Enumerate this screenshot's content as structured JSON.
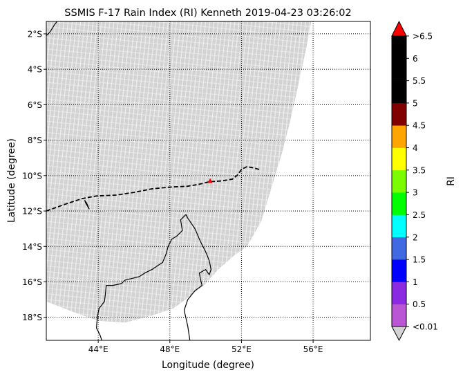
{
  "chart_data": {
    "type": "map",
    "title": "SSMIS F-17 Rain Index (RI) Kenneth 2019-04-23 03:26:02",
    "xlabel": "Longitude (degree)",
    "ylabel": "Latitude (degree)",
    "xlim": [
      41.1,
      59.2
    ],
    "ylim": [
      -19.3,
      -1.3
    ],
    "x_ticks": [
      {
        "value": 44,
        "label": "44°E"
      },
      {
        "value": 48,
        "label": "48°E"
      },
      {
        "value": 52,
        "label": "52°E"
      },
      {
        "value": 56,
        "label": "56°E"
      }
    ],
    "y_ticks": [
      {
        "value": -2,
        "label": "2°S"
      },
      {
        "value": -4,
        "label": "4°S"
      },
      {
        "value": -6,
        "label": "6°S"
      },
      {
        "value": -8,
        "label": "8°S"
      },
      {
        "value": -10,
        "label": "10°S"
      },
      {
        "value": -12,
        "label": "12°S"
      },
      {
        "value": -14,
        "label": "14°S"
      },
      {
        "value": -16,
        "label": "16°S"
      },
      {
        "value": -18,
        "label": "18°S"
      }
    ],
    "swath_color": "#d3d3d3",
    "swath_outline": [
      [
        41.1,
        -1.3
      ],
      [
        55.9,
        -1.3
      ],
      [
        55.7,
        -2.4
      ],
      [
        55.3,
        -4.3
      ],
      [
        54.8,
        -6.6
      ],
      [
        54.3,
        -8.6
      ],
      [
        53.7,
        -10.6
      ],
      [
        53.1,
        -12.6
      ],
      [
        52.3,
        -14.0
      ],
      [
        51.6,
        -14.5
      ],
      [
        50.7,
        -15.3
      ],
      [
        49.9,
        -16.2
      ],
      [
        49.0,
        -16.9
      ],
      [
        48.2,
        -17.5
      ],
      [
        47.0,
        -17.9
      ],
      [
        45.5,
        -18.3
      ],
      [
        44.0,
        -18.2
      ],
      [
        42.6,
        -17.7
      ],
      [
        41.1,
        -17.1
      ]
    ],
    "track": {
      "color": "#000000",
      "points": [
        [
          41.1,
          -12.0
        ],
        [
          42.2,
          -11.6
        ],
        [
          43.1,
          -11.3
        ],
        [
          43.9,
          -11.15
        ],
        [
          45.0,
          -11.1
        ],
        [
          46.0,
          -10.95
        ],
        [
          47.0,
          -10.75
        ],
        [
          48.0,
          -10.65
        ],
        [
          49.0,
          -10.6
        ],
        [
          49.6,
          -10.5
        ],
        [
          50.2,
          -10.35
        ],
        [
          50.9,
          -10.3
        ],
        [
          51.5,
          -10.2
        ],
        [
          51.8,
          -9.95
        ],
        [
          52.0,
          -9.65
        ],
        [
          52.3,
          -9.5
        ],
        [
          52.6,
          -9.55
        ],
        [
          53.0,
          -9.65
        ]
      ]
    },
    "storm_center": {
      "lon": 50.25,
      "lat": -10.3,
      "color": "#ff0000"
    },
    "coastlines": [
      [
        [
          41.1,
          -2.1
        ],
        [
          41.3,
          -1.9
        ],
        [
          41.55,
          -1.5
        ],
        [
          41.7,
          -1.3
        ]
      ],
      [
        [
          49.12,
          -19.3
        ],
        [
          49.0,
          -18.5
        ],
        [
          48.8,
          -17.6
        ],
        [
          49.0,
          -17.0
        ],
        [
          49.4,
          -16.5
        ],
        [
          49.8,
          -16.2
        ],
        [
          49.7,
          -15.8
        ],
        [
          49.65,
          -15.5
        ],
        [
          50.0,
          -15.3
        ],
        [
          50.2,
          -15.6
        ],
        [
          50.3,
          -15.3
        ],
        [
          50.2,
          -14.8
        ],
        [
          50.0,
          -14.3
        ],
        [
          49.7,
          -13.7
        ],
        [
          49.4,
          -13.0
        ],
        [
          49.0,
          -12.4
        ],
        [
          48.9,
          -12.2
        ],
        [
          48.6,
          -12.5
        ],
        [
          48.7,
          -13.1
        ],
        [
          48.4,
          -13.4
        ],
        [
          48.1,
          -13.6
        ],
        [
          47.9,
          -14.0
        ],
        [
          47.8,
          -14.4
        ],
        [
          47.6,
          -14.9
        ],
        [
          47.3,
          -15.1
        ],
        [
          47.0,
          -15.3
        ],
        [
          46.6,
          -15.5
        ],
        [
          46.3,
          -15.7
        ],
        [
          45.9,
          -15.8
        ],
        [
          45.5,
          -15.9
        ],
        [
          45.3,
          -16.1
        ],
        [
          44.8,
          -16.2
        ],
        [
          44.45,
          -16.2
        ],
        [
          44.4,
          -16.7
        ],
        [
          44.35,
          -17.1
        ],
        [
          44.05,
          -17.5
        ],
        [
          43.95,
          -18.0
        ],
        [
          43.9,
          -18.6
        ],
        [
          44.1,
          -19.0
        ],
        [
          44.2,
          -19.3
        ]
      ],
      [
        [
          43.5,
          -11.9
        ],
        [
          43.35,
          -11.55
        ],
        [
          43.25,
          -11.4
        ],
        [
          43.3,
          -11.55
        ],
        [
          43.5,
          -11.9
        ]
      ]
    ],
    "colorbar": {
      "label": "RI",
      "under_label": "<0.01",
      "over_label": ">6.5",
      "under_color": "#d3d3d3",
      "over_color": "#ff0000",
      "levels": [
        0.01,
        0.5,
        1,
        1.5,
        2,
        2.5,
        3,
        3.5,
        4,
        4.5,
        5,
        5.5,
        6,
        6.5
      ],
      "tick_labels": [
        "0.5",
        "1",
        "1.5",
        "2",
        "2.5",
        "3",
        "3.5",
        "4",
        "4.5",
        "5",
        "5.5",
        "6"
      ],
      "colors": [
        "#ba55d3",
        "#8a2be2",
        "#0000ff",
        "#4169e1",
        "#00ffff",
        "#00ff00",
        "#7cfc00",
        "#ffff00",
        "#ffa500",
        "#800000",
        "#000000",
        "#000000",
        "#000000"
      ]
    }
  }
}
